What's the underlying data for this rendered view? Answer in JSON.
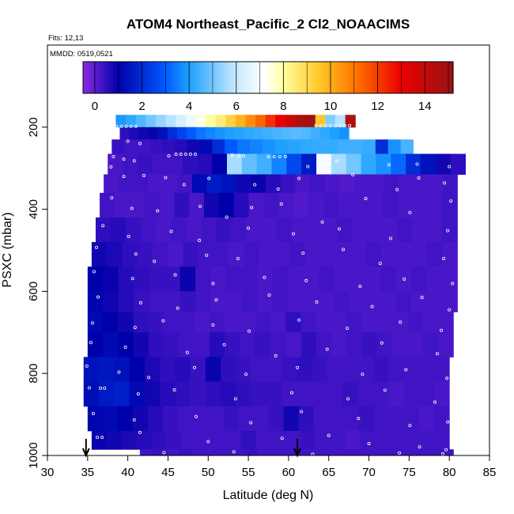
{
  "chart_data": {
    "type": "heatmap",
    "title": "ATOM4 Northeast_Pacific_2 Cl2_NOAACIMS",
    "flights_label": "Flts: 12,13",
    "dates_label": "MMDD: 0519,0521",
    "xlabel": "Latitude (deg N)",
    "ylabel": "PSXC (mbar)",
    "xlim": [
      30,
      85
    ],
    "ylim": [
      1000,
      0
    ],
    "x_ticks": [
      "30",
      "35",
      "40",
      "45",
      "50",
      "55",
      "60",
      "65",
      "70",
      "75",
      "80",
      "85"
    ],
    "y_ticks": [
      "200",
      "400",
      "600",
      "800",
      "1000"
    ],
    "colorbar": {
      "range": [
        -0.5,
        15.2
      ],
      "tick_values": [
        0,
        2,
        4,
        6,
        8,
        10,
        12,
        14
      ],
      "tick_labels": [
        "0",
        "2",
        "4",
        "6",
        "8",
        "10",
        "12",
        "14"
      ]
    },
    "arrow_markers_lat": [
      34.8,
      61.1
    ],
    "grid": false,
    "legend": "none",
    "rows": [
      {
        "p": [
          170,
          200
        ],
        "lat": [
          38.5,
          68.3
        ],
        "values": [
          3.9,
          4.2,
          4.6,
          5.0,
          5.4,
          5.8,
          6.3,
          6.8,
          7.4,
          8.0,
          8.5,
          9.2,
          9.9,
          10.6,
          11.3,
          12.2,
          13.0,
          13.8,
          14.6,
          14.9,
          9.5,
          5.2,
          5.8,
          14.6
        ]
      },
      {
        "p": [
          200,
          230
        ],
        "lat": [
          39.0,
          67.5
        ],
        "values": [
          0.5,
          0.7,
          0.8,
          0.9,
          1.4,
          2.0,
          2.5,
          3.0,
          3.4,
          3.6,
          3.8,
          4.0,
          4.1,
          4.2,
          4.3,
          4.4,
          4.5,
          4.6,
          4.7,
          4.6,
          4.4,
          4.2,
          4.0,
          3.8
        ]
      },
      {
        "p": [
          230,
          265
        ],
        "lat": [
          38.0,
          75.5
        ],
        "values": [
          0.4,
          0.3,
          0.3,
          0.4,
          0.5,
          0.6,
          0.8,
          1.2,
          2.0,
          3.0,
          3.4,
          3.6,
          3.8,
          4.0,
          4.1,
          4.2,
          4.3,
          4.3,
          4.4,
          4.4,
          4.3,
          2.0,
          3.8,
          4.5
        ]
      },
      {
        "p": [
          265,
          315
        ],
        "lat": [
          37.5,
          82.0
        ],
        "values": [
          0.2,
          0.3,
          0.4,
          0.3,
          0.3,
          0.5,
          0.6,
          1.0,
          5.6,
          4.8,
          4.4,
          3.6,
          2.6,
          1.6,
          7.0,
          5.6,
          5.0,
          4.2,
          3.8,
          3.2,
          2.0,
          1.4,
          0.8,
          0.5
        ]
      },
      {
        "p": [
          315,
          360
        ],
        "lat": [
          37.0,
          81.0
        ],
        "values": [
          0.2,
          0.3,
          0.3,
          0.2,
          0.2,
          0.3,
          1.2,
          1.6,
          1.4,
          0.8,
          0.9,
          0.6,
          0.4,
          0.2,
          0.3,
          0.2,
          0.1,
          0.2,
          0.2,
          0.3,
          0.2,
          0.2,
          0.2,
          0.3
        ]
      },
      {
        "p": [
          360,
          420
        ],
        "lat": [
          36.5,
          81.0
        ],
        "values": [
          0.3,
          0.2,
          0.2,
          0.3,
          0.2,
          0.5,
          0.2,
          0.8,
          1.0,
          0.6,
          0.2,
          0.3,
          0.2,
          0.1,
          0.2,
          0.3,
          0.2,
          0.2,
          0.2,
          0.3,
          0.2,
          0.2,
          0.2,
          0.3
        ]
      },
      {
        "p": [
          420,
          480
        ],
        "lat": [
          36.0,
          81.0
        ],
        "values": [
          0.5,
          0.6,
          0.4,
          0.3,
          0.2,
          0.3,
          0.2,
          0.3,
          0.4,
          0.3,
          0.2,
          0.2,
          0.3,
          0.2,
          0.2,
          0.2,
          0.3,
          0.2,
          0.2,
          0.2,
          0.3,
          0.2,
          0.2,
          0.3
        ]
      },
      {
        "p": [
          480,
          540
        ],
        "lat": [
          35.5,
          81.0
        ],
        "values": [
          0.8,
          0.7,
          0.5,
          0.4,
          0.3,
          0.2,
          0.4,
          0.3,
          0.3,
          0.2,
          0.3,
          0.2,
          0.2,
          0.3,
          0.2,
          0.2,
          0.2,
          0.2,
          0.3,
          0.2,
          0.2,
          0.2,
          0.3,
          0.2
        ]
      },
      {
        "p": [
          540,
          600
        ],
        "lat": [
          35.0,
          81.0
        ],
        "values": [
          1.0,
          0.9,
          0.6,
          0.5,
          0.4,
          0.4,
          0.9,
          0.3,
          0.2,
          0.3,
          0.3,
          0.2,
          0.3,
          0.2,
          0.2,
          0.3,
          0.2,
          0.2,
          0.2,
          0.3,
          0.2,
          0.3,
          0.2,
          0.2
        ]
      },
      {
        "p": [
          600,
          650
        ],
        "lat": [
          35.0,
          81.0
        ],
        "values": [
          1.1,
          0.8,
          0.6,
          0.4,
          0.3,
          0.3,
          0.4,
          0.3,
          0.2,
          0.2,
          0.3,
          0.2,
          0.3,
          0.2,
          0.2,
          0.2,
          0.3,
          0.2,
          0.2,
          0.2,
          0.3,
          0.2,
          0.2,
          0.2
        ]
      },
      {
        "p": [
          650,
          700
        ],
        "lat": [
          35.0,
          80.5
        ],
        "values": [
          1.2,
          1.0,
          0.8,
          0.5,
          0.4,
          0.3,
          0.3,
          0.2,
          0.3,
          0.2,
          0.2,
          0.3,
          0.2,
          0.5,
          0.3,
          0.2,
          0.2,
          0.3,
          0.2,
          0.2,
          0.2,
          0.3,
          0.2,
          0.2
        ]
      },
      {
        "p": [
          700,
          760
        ],
        "lat": [
          35.0,
          80.5
        ],
        "values": [
          1.0,
          1.2,
          1.0,
          0.8,
          0.5,
          0.4,
          0.3,
          0.3,
          0.6,
          0.4,
          0.3,
          0.4,
          0.3,
          0.2,
          0.5,
          0.3,
          0.2,
          0.3,
          0.4,
          0.3,
          0.2,
          0.2,
          0.3,
          0.2
        ]
      },
      {
        "p": [
          760,
          820
        ],
        "lat": [
          34.5,
          80.0
        ],
        "values": [
          1.4,
          1.5,
          1.4,
          1.0,
          0.7,
          0.5,
          0.6,
          0.4,
          0.9,
          0.5,
          0.4,
          0.3,
          0.3,
          0.4,
          0.5,
          0.4,
          0.3,
          0.3,
          0.3,
          0.4,
          0.3,
          0.3,
          0.3,
          0.3
        ]
      },
      {
        "p": [
          820,
          880
        ],
        "lat": [
          34.5,
          80.0
        ],
        "values": [
          1.3,
          1.6,
          1.7,
          1.2,
          0.8,
          0.6,
          0.5,
          0.4,
          0.5,
          0.6,
          0.5,
          0.4,
          0.4,
          0.3,
          0.3,
          0.3,
          0.3,
          0.4,
          0.3,
          0.3,
          0.2,
          0.3,
          0.3,
          0.2
        ]
      },
      {
        "p": [
          880,
          940
        ],
        "lat": [
          35.0,
          80.0
        ],
        "values": [
          1.1,
          1.2,
          1.0,
          0.8,
          0.6,
          0.4,
          0.3,
          0.3,
          0.3,
          0.4,
          0.3,
          0.3,
          0.4,
          0.8,
          0.5,
          0.3,
          0.3,
          0.3,
          0.4,
          0.3,
          0.3,
          0.3,
          0.2,
          0.3
        ]
      },
      {
        "p": [
          940,
          985
        ],
        "lat": [
          35.5,
          80.0
        ],
        "values": [
          0.9,
          0.8,
          0.7,
          0.6,
          0.5,
          0.4,
          0.3,
          0.3,
          0.3,
          0.3,
          0.5,
          0.3,
          0.3,
          0.3,
          0.4,
          0.3,
          0.3,
          0.2,
          0.3,
          0.3,
          0.3,
          0.3,
          0.3,
          0.3
        ]
      },
      {
        "p": [
          985,
          1000
        ],
        "lat": [
          41.5,
          80.5
        ],
        "values": [
          0.3,
          0.4,
          0.3,
          0.4,
          0.3,
          0.3,
          0.3,
          0.3,
          0.4,
          0.3,
          0.3,
          0.3,
          0.3,
          0.3,
          0.3,
          0.3,
          0.3,
          0.3,
          0.3,
          0.3,
          0.3,
          0.3,
          0.3,
          0.3
        ]
      }
    ],
    "sample_points": [
      [
        38.6,
        198
      ],
      [
        39.2,
        198
      ],
      [
        39.8,
        198
      ],
      [
        40.4,
        198
      ],
      [
        41.0,
        198
      ],
      [
        63.4,
        196
      ],
      [
        64.0,
        196
      ],
      [
        64.6,
        196
      ],
      [
        65.2,
        196
      ],
      [
        65.8,
        196
      ],
      [
        66.4,
        196
      ],
      [
        67.0,
        196
      ],
      [
        67.6,
        196
      ],
      [
        69.0,
        223
      ],
      [
        69.5,
        223
      ],
      [
        70.0,
        223
      ],
      [
        40.0,
        234
      ],
      [
        41.5,
        240
      ],
      [
        46.0,
        266
      ],
      [
        46.6,
        266
      ],
      [
        47.2,
        266
      ],
      [
        47.8,
        266
      ],
      [
        48.4,
        266
      ],
      [
        53.0,
        268
      ],
      [
        53.8,
        270
      ],
      [
        54.4,
        270
      ],
      [
        57.5,
        272
      ],
      [
        58.2,
        272
      ],
      [
        58.9,
        272
      ],
      [
        59.6,
        272
      ],
      [
        38.2,
        272
      ],
      [
        39.5,
        278
      ],
      [
        40.8,
        282
      ],
      [
        45.1,
        270
      ],
      [
        37.9,
        297
      ],
      [
        72.5,
        292
      ],
      [
        76.0,
        290
      ],
      [
        80.0,
        296
      ],
      [
        66.0,
        283
      ],
      [
        62.4,
        296
      ],
      [
        39.5,
        320
      ],
      [
        42.0,
        318
      ],
      [
        44.7,
        323
      ],
      [
        47.0,
        340
      ],
      [
        50.1,
        325
      ],
      [
        55.8,
        340
      ],
      [
        58.7,
        351
      ],
      [
        61.3,
        325
      ],
      [
        68.0,
        316
      ],
      [
        73.5,
        352
      ],
      [
        76.2,
        324
      ],
      [
        79.4,
        336
      ],
      [
        38.0,
        372
      ],
      [
        40.5,
        398
      ],
      [
        43.7,
        404
      ],
      [
        49.0,
        393
      ],
      [
        52.3,
        419
      ],
      [
        55.4,
        396
      ],
      [
        59.1,
        387
      ],
      [
        64.2,
        431
      ],
      [
        69.6,
        374
      ],
      [
        75.1,
        408
      ],
      [
        80.2,
        380
      ],
      [
        36.9,
        440
      ],
      [
        40.1,
        466
      ],
      [
        45.4,
        454
      ],
      [
        48.9,
        476
      ],
      [
        55.0,
        446
      ],
      [
        60.6,
        460
      ],
      [
        66.3,
        448
      ],
      [
        72.7,
        471
      ],
      [
        79.8,
        452
      ],
      [
        36.1,
        493
      ],
      [
        41.0,
        509
      ],
      [
        43.3,
        527
      ],
      [
        49.8,
        512
      ],
      [
        53.7,
        520
      ],
      [
        61.8,
        507
      ],
      [
        66.8,
        498
      ],
      [
        71.4,
        532
      ],
      [
        79.3,
        520
      ],
      [
        35.8,
        552
      ],
      [
        40.6,
        569
      ],
      [
        45.9,
        560
      ],
      [
        50.6,
        581
      ],
      [
        57.0,
        566
      ],
      [
        62.2,
        574
      ],
      [
        68.9,
        588
      ],
      [
        74.4,
        570
      ],
      [
        80.4,
        581
      ],
      [
        36.3,
        614
      ],
      [
        41.6,
        628
      ],
      [
        46.2,
        641
      ],
      [
        51.0,
        621
      ],
      [
        57.6,
        609
      ],
      [
        63.5,
        626
      ],
      [
        70.4,
        637
      ],
      [
        76.6,
        615
      ],
      [
        80.0,
        645
      ],
      [
        35.6,
        677
      ],
      [
        40.9,
        688
      ],
      [
        44.4,
        672
      ],
      [
        50.6,
        682
      ],
      [
        55.1,
        697
      ],
      [
        61.3,
        670
      ],
      [
        67.3,
        690
      ],
      [
        73.9,
        675
      ],
      [
        79.0,
        695
      ],
      [
        35.4,
        725
      ],
      [
        39.7,
        736
      ],
      [
        47.4,
        749
      ],
      [
        52.0,
        730
      ],
      [
        58.4,
        757
      ],
      [
        64.8,
        741
      ],
      [
        71.6,
        726
      ],
      [
        78.5,
        752
      ],
      [
        34.9,
        782
      ],
      [
        38.9,
        797
      ],
      [
        42.6,
        810
      ],
      [
        48.3,
        786
      ],
      [
        54.7,
        802
      ],
      [
        61.1,
        786
      ],
      [
        69.2,
        802
      ],
      [
        74.6,
        791
      ],
      [
        79.7,
        812
      ],
      [
        35.2,
        835
      ],
      [
        36.6,
        836
      ],
      [
        37.1,
        836
      ],
      [
        41.3,
        850
      ],
      [
        45.8,
        840
      ],
      [
        53.4,
        862
      ],
      [
        60.4,
        847
      ],
      [
        67.4,
        862
      ],
      [
        72.0,
        841
      ],
      [
        78.2,
        870
      ],
      [
        35.7,
        898
      ],
      [
        40.8,
        913
      ],
      [
        48.5,
        905
      ],
      [
        55.3,
        920
      ],
      [
        61.6,
        893
      ],
      [
        68.7,
        910
      ],
      [
        75.1,
        927
      ],
      [
        79.8,
        918
      ],
      [
        36.2,
        956
      ],
      [
        36.8,
        956
      ],
      [
        41.5,
        944
      ],
      [
        50.0,
        966
      ],
      [
        59.2,
        958
      ],
      [
        65.0,
        951
      ],
      [
        70.0,
        971
      ],
      [
        76.3,
        979
      ],
      [
        79.6,
        986
      ],
      [
        44.5,
        993
      ],
      [
        53.2,
        991
      ],
      [
        63.0,
        997
      ],
      [
        73.8,
        994
      ],
      [
        79.2,
        996
      ]
    ]
  }
}
